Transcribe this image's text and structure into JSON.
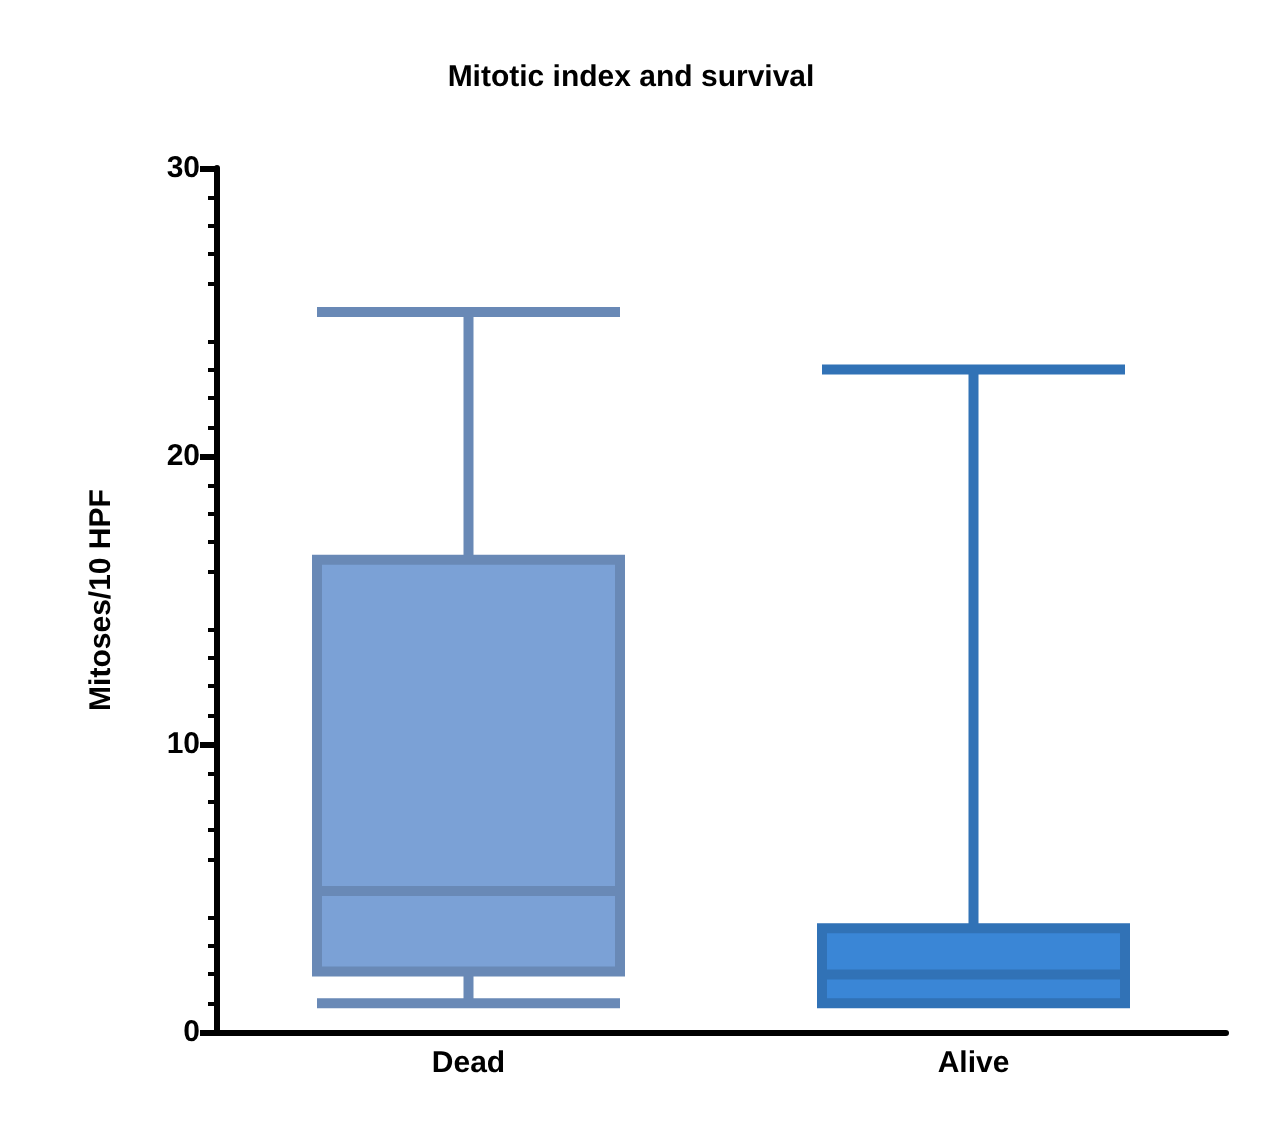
{
  "chart_data": {
    "type": "box",
    "title": "Mitotic index and survival",
    "ylabel": "Mitoses/10 HPF",
    "categories": [
      "Dead",
      "Alive"
    ],
    "boxes": [
      {
        "low": 1,
        "q1": 2.1,
        "median": 4.9,
        "q3": 16.4,
        "high": 25
      },
      {
        "low": 1,
        "q1": 1,
        "median": 2,
        "q3": 3.6,
        "high": 23
      }
    ],
    "colors": [
      "#7ba1d6",
      "#3a86d6"
    ],
    "ylim": [
      0,
      30
    ],
    "yticks": [
      0,
      10,
      20,
      30
    ],
    "grid": false
  }
}
